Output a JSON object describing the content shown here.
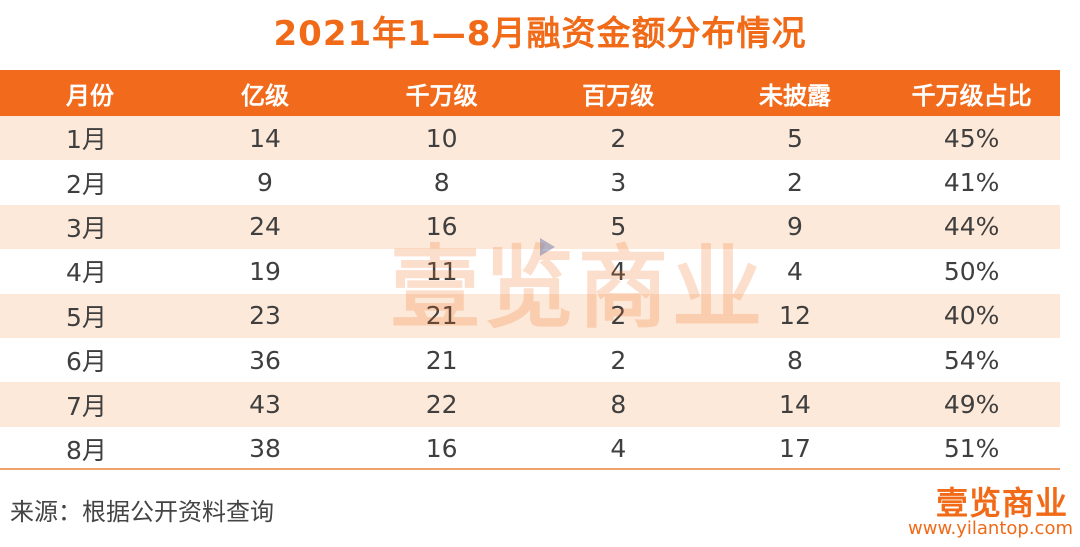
{
  "title": "2021年1—8月融资金额分布情况",
  "table": {
    "headers": [
      "月份",
      "亿级",
      "千万级",
      "百万级",
      "未披露",
      "千万级占比"
    ],
    "rows": [
      [
        "1月",
        "14",
        "10",
        "2",
        "5",
        "45%"
      ],
      [
        "2月",
        "9",
        "8",
        "3",
        "2",
        "41%"
      ],
      [
        "3月",
        "24",
        "16",
        "5",
        "9",
        "44%"
      ],
      [
        "4月",
        "19",
        "11",
        "4",
        "4",
        "50%"
      ],
      [
        "5月",
        "23",
        "21",
        "2",
        "12",
        "40%"
      ],
      [
        "6月",
        "36",
        "21",
        "2",
        "8",
        "54%"
      ],
      [
        "7月",
        "43",
        "22",
        "8",
        "14",
        "49%"
      ],
      [
        "8月",
        "38",
        "16",
        "4",
        "17",
        "51%"
      ]
    ]
  },
  "source": "来源：根据公开资料查询",
  "watermark": "壹览商业",
  "logo": {
    "text": "壹览商业",
    "url": "www.yilantop.com"
  },
  "colors": {
    "accent": "#f26a1b",
    "stripe": "#fde9d9"
  }
}
